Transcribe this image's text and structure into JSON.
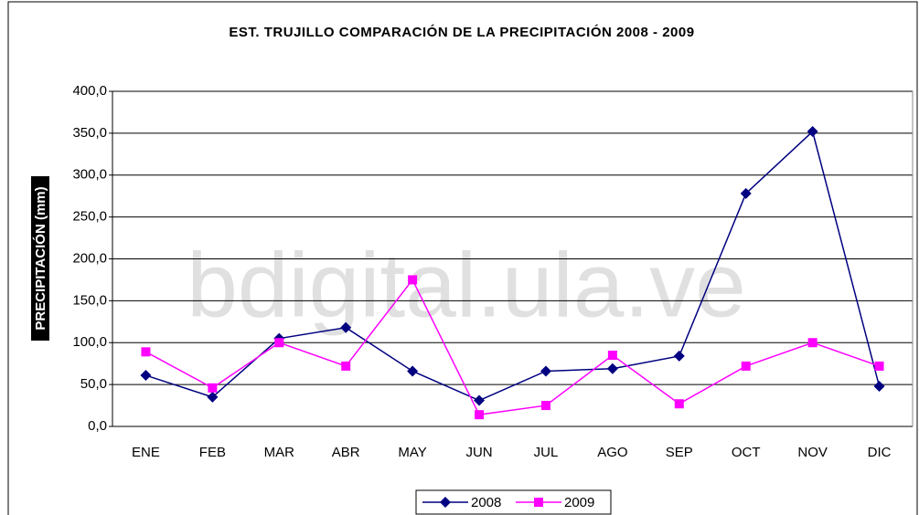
{
  "chart_data": {
    "type": "line",
    "title": "EST. TRUJILLO COMPARACIÓN DE LA PRECIPITACIÓN 2008 - 2009",
    "y_label": "PRECIPITACIÓN (mm)",
    "watermark": "bdigital.ula.ve",
    "categories": [
      "ENE",
      "FEB",
      "MAR",
      "ABR",
      "MAY",
      "JUN",
      "JUL",
      "AGO",
      "SEP",
      "OCT",
      "NOV",
      "DIC"
    ],
    "series": [
      {
        "name": "2008",
        "color": "#000080",
        "marker": "diamond",
        "values": [
          61,
          35,
          105,
          118,
          66,
          31,
          66,
          69,
          84,
          278,
          352,
          48
        ]
      },
      {
        "name": "2009",
        "color": "#ff00ff",
        "marker": "square",
        "values": [
          89,
          46,
          100,
          72,
          175,
          14,
          25,
          85,
          27,
          72,
          100,
          72
        ]
      }
    ],
    "ylim": [
      0,
      400
    ],
    "yticks": [
      {
        "value": 0,
        "label": "0,0"
      },
      {
        "value": 50,
        "label": "50,0"
      },
      {
        "value": 100,
        "label": "100,0"
      },
      {
        "value": 150,
        "label": "150,0"
      },
      {
        "value": 200,
        "label": "200,0"
      },
      {
        "value": 250,
        "label": "250,0"
      },
      {
        "value": 300,
        "label": "300,0"
      },
      {
        "value": 350,
        "label": "350,0"
      },
      {
        "value": 400,
        "label": "400,0"
      }
    ],
    "grid": true,
    "legend": "bottom"
  }
}
